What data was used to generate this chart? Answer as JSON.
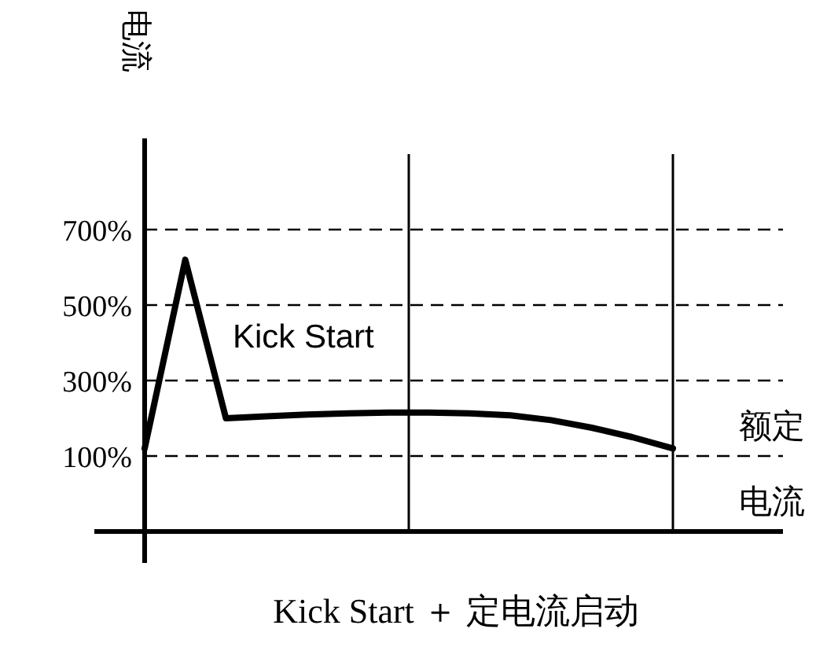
{
  "chart_data": {
    "type": "line",
    "xlabel": "Kick Start ＋ 定电流启动",
    "ylabel": "电流",
    "annotations": [
      "Kick Start",
      "额定",
      "电流"
    ],
    "categories": [
      null,
      null,
      null,
      null,
      null,
      null,
      null,
      null,
      null,
      null,
      null,
      null,
      null,
      null
    ],
    "series": [
      {
        "color": "#000000",
        "values": [
          120,
          620,
          200,
          205,
          210,
          213,
          215,
          215,
          213,
          208,
          195,
          175,
          150,
          120
        ]
      }
    ],
    "ylim": [
      -100,
      900
    ],
    "yticks": [
      {
        "value": 100,
        "label": "100%"
      },
      {
        "value": 300,
        "label": "300%"
      },
      {
        "value": 500,
        "label": "500%"
      },
      {
        "value": 700,
        "label": "700%"
      }
    ],
    "tick_labels": "y",
    "grid": "y",
    "marker": "none",
    "line_style": "solid"
  }
}
